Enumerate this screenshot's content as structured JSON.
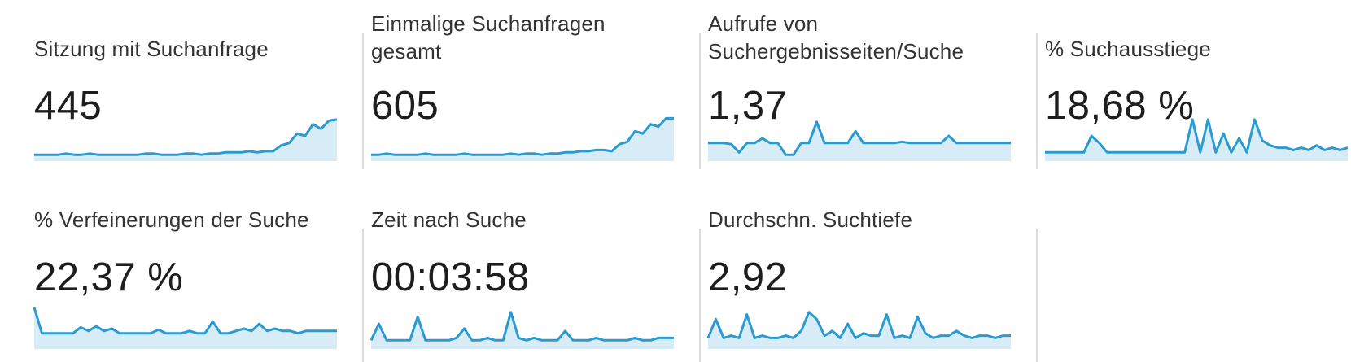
{
  "theme": {
    "line_color": "#2a9bd1",
    "fill_color": "#d7ecf7",
    "divider_color": "#dcdcdc"
  },
  "metrics": [
    {
      "label": "Sitzung mit Suchanfrage",
      "value": "445",
      "sparkline": [
        4,
        4,
        4,
        4,
        5,
        4,
        4,
        5,
        4,
        4,
        4,
        4,
        4,
        4,
        5,
        5,
        4,
        4,
        4,
        5,
        5,
        4,
        5,
        5,
        6,
        6,
        6,
        7,
        6,
        7,
        7,
        12,
        14,
        22,
        20,
        30,
        26,
        33,
        34
      ]
    },
    {
      "label": "Einmalige Suchanfragen\ngesamt",
      "value": "605",
      "sparkline": [
        4,
        4,
        5,
        4,
        4,
        4,
        4,
        5,
        4,
        4,
        4,
        4,
        5,
        4,
        4,
        4,
        4,
        4,
        5,
        4,
        5,
        5,
        4,
        5,
        5,
        6,
        6,
        7,
        7,
        8,
        8,
        7,
        13,
        15,
        24,
        22,
        30,
        28,
        35,
        35
      ]
    },
    {
      "label": "Aufrufe von\nSuchergebnisseiten/Suche",
      "value": "1,37",
      "sparkline": [
        14,
        14,
        14,
        13,
        6,
        14,
        14,
        18,
        14,
        14,
        4,
        4,
        14,
        14,
        32,
        14,
        14,
        14,
        14,
        24,
        14,
        14,
        14,
        14,
        14,
        15,
        14,
        14,
        14,
        14,
        14,
        20,
        14,
        14,
        14,
        14,
        14,
        14,
        14,
        14
      ]
    },
    {
      "label": "% Suchausstiege",
      "value": "18,68 %",
      "sparkline": [
        6,
        6,
        6,
        6,
        6,
        6,
        20,
        14,
        6,
        6,
        6,
        6,
        6,
        6,
        6,
        6,
        6,
        6,
        6,
        34,
        6,
        34,
        6,
        22,
        6,
        18,
        6,
        34,
        16,
        12,
        10,
        10,
        8,
        10,
        8,
        12,
        8,
        10,
        8,
        10
      ]
    },
    {
      "label": "% Verfeinerungen der Suche",
      "value": "22,37 %",
      "sparkline": [
        34,
        12,
        12,
        12,
        12,
        12,
        17,
        14,
        18,
        14,
        16,
        12,
        12,
        12,
        12,
        12,
        15,
        12,
        12,
        12,
        14,
        12,
        12,
        22,
        12,
        12,
        14,
        16,
        14,
        20,
        14,
        16,
        14,
        14,
        12,
        14,
        14,
        14,
        14,
        14
      ]
    },
    {
      "label": "Zeit nach Suche",
      "value": "00:03:58",
      "sparkline": [
        6,
        20,
        6,
        6,
        6,
        6,
        26,
        6,
        6,
        6,
        6,
        8,
        16,
        6,
        6,
        8,
        6,
        6,
        30,
        8,
        6,
        8,
        6,
        6,
        6,
        14,
        6,
        6,
        6,
        8,
        6,
        6,
        6,
        6,
        8,
        6,
        6,
        8,
        8,
        8
      ]
    },
    {
      "label": "Durchschn. Suchtiefe",
      "value": "2,92",
      "sparkline": [
        8,
        24,
        8,
        10,
        8,
        28,
        8,
        10,
        8,
        8,
        10,
        8,
        14,
        30,
        24,
        10,
        14,
        8,
        20,
        8,
        12,
        10,
        10,
        28,
        8,
        10,
        8,
        26,
        12,
        8,
        10,
        10,
        14,
        10,
        8,
        10,
        10,
        8,
        10,
        10
      ]
    }
  ]
}
